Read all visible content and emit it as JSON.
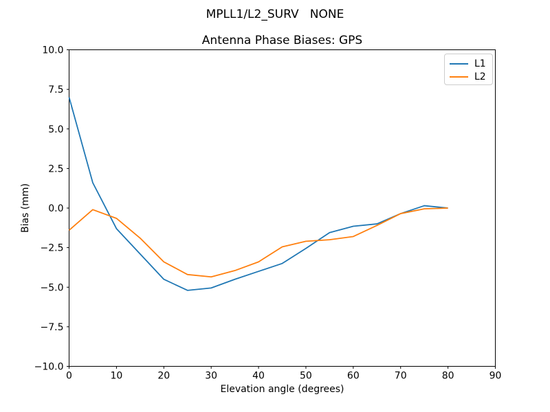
{
  "figure": {
    "suptitle": "MPLL1/L2_SURV   NONE",
    "background": "#ffffff"
  },
  "chart_data": {
    "type": "line",
    "title": "Antenna Phase Biases: GPS",
    "suptitle": "MPLL1/L2_SURV   NONE",
    "xlabel": "Elevation angle (degrees)",
    "ylabel": "Bias (mm)",
    "xlim": [
      0,
      90
    ],
    "ylim": [
      -10,
      10
    ],
    "xticks": [
      0,
      10,
      20,
      30,
      40,
      50,
      60,
      70,
      80,
      90
    ],
    "yticks": [
      10.0,
      7.5,
      5.0,
      2.5,
      0.0,
      -2.5,
      -5.0,
      -7.5,
      -10.0
    ],
    "grid": false,
    "legend_position": "upper right",
    "x": [
      0,
      5,
      10,
      15,
      20,
      25,
      30,
      35,
      40,
      45,
      50,
      55,
      60,
      65,
      70,
      75,
      80
    ],
    "series": [
      {
        "name": "L1",
        "color": "#1f77b4",
        "values": [
          7.0,
          1.6,
          -1.3,
          -2.9,
          -4.5,
          -5.2,
          -5.05,
          -4.5,
          -4.0,
          -3.5,
          -2.55,
          -1.55,
          -1.15,
          -1.0,
          -0.35,
          0.15,
          0.0
        ]
      },
      {
        "name": "L2",
        "color": "#ff7f0e",
        "values": [
          -1.4,
          -0.1,
          -0.65,
          -1.9,
          -3.4,
          -4.2,
          -4.35,
          -3.95,
          -3.4,
          -2.45,
          -2.1,
          -2.0,
          -1.8,
          -1.1,
          -0.35,
          -0.05,
          0.0
        ]
      }
    ]
  }
}
